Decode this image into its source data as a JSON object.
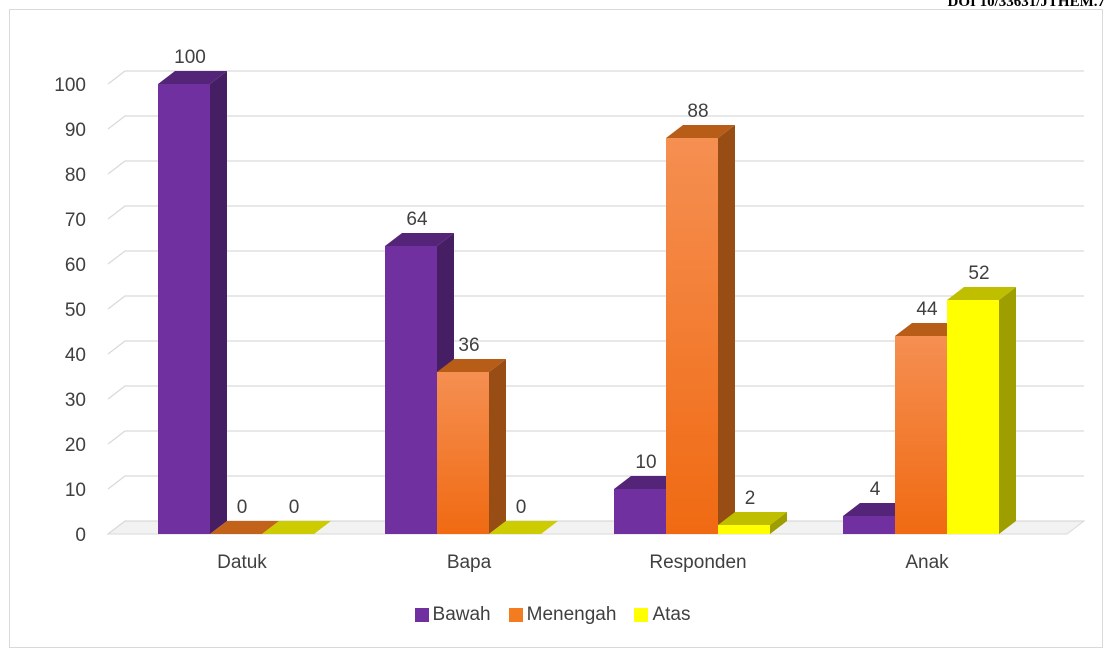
{
  "header": {
    "doi": "DOI 10/33631/JTHEM.7"
  },
  "chart_data": {
    "type": "bar",
    "title": "",
    "xlabel": "",
    "ylabel": "",
    "categories": [
      "Datuk",
      "Bapa",
      "Responden",
      "Anak"
    ],
    "series": [
      {
        "name": "Bawah",
        "values": [
          100,
          64,
          10,
          4
        ],
        "color": "#7030a0"
      },
      {
        "name": "Menengah",
        "values": [
          0,
          36,
          88,
          44
        ],
        "color": "#f47c20"
      },
      {
        "name": "Atas",
        "values": [
          0,
          0,
          2,
          52
        ],
        "color": "#ffff00"
      }
    ],
    "ylim": [
      0,
      100
    ],
    "yticks": [
      0,
      10,
      20,
      30,
      40,
      50,
      60,
      70,
      80,
      90,
      100
    ],
    "grid": true,
    "legend": "bottom",
    "style": "3d-column"
  }
}
